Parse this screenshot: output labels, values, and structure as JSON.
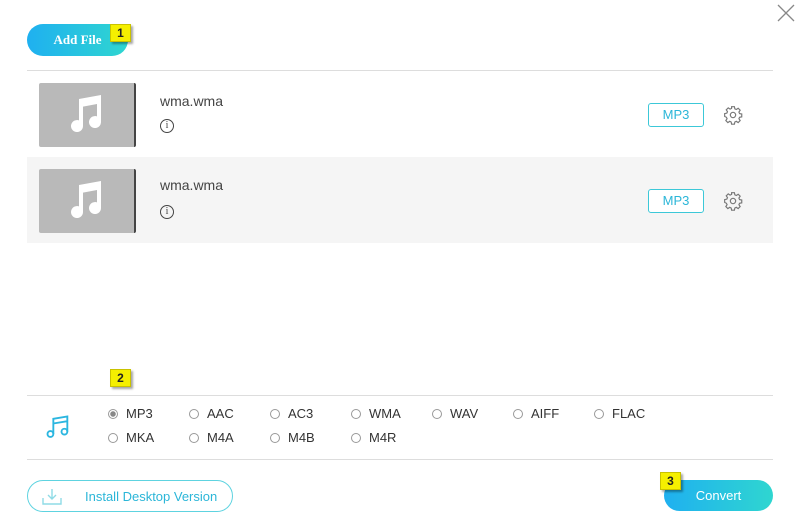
{
  "toolbar": {
    "add_file_label": "Add File",
    "close_icon": "close-icon"
  },
  "badges": [
    "1",
    "2",
    "3"
  ],
  "files": [
    {
      "name": "wma.wma",
      "format": "MP3",
      "info": "i"
    },
    {
      "name": "wma.wma",
      "format": "MP3",
      "info": "i"
    }
  ],
  "formats": {
    "selected": "MP3",
    "row1": [
      "MP3",
      "AAC",
      "AC3",
      "WMA",
      "WAV",
      "AIFF",
      "FLAC"
    ],
    "row2": [
      "MKA",
      "M4A",
      "M4B",
      "M4R"
    ]
  },
  "footer": {
    "install_label": "Install Desktop Version",
    "convert_label": "Convert"
  },
  "colors": {
    "accent": "#1fb0f0",
    "accent2": "#2fd6d0",
    "badge": "#f5ef00"
  }
}
